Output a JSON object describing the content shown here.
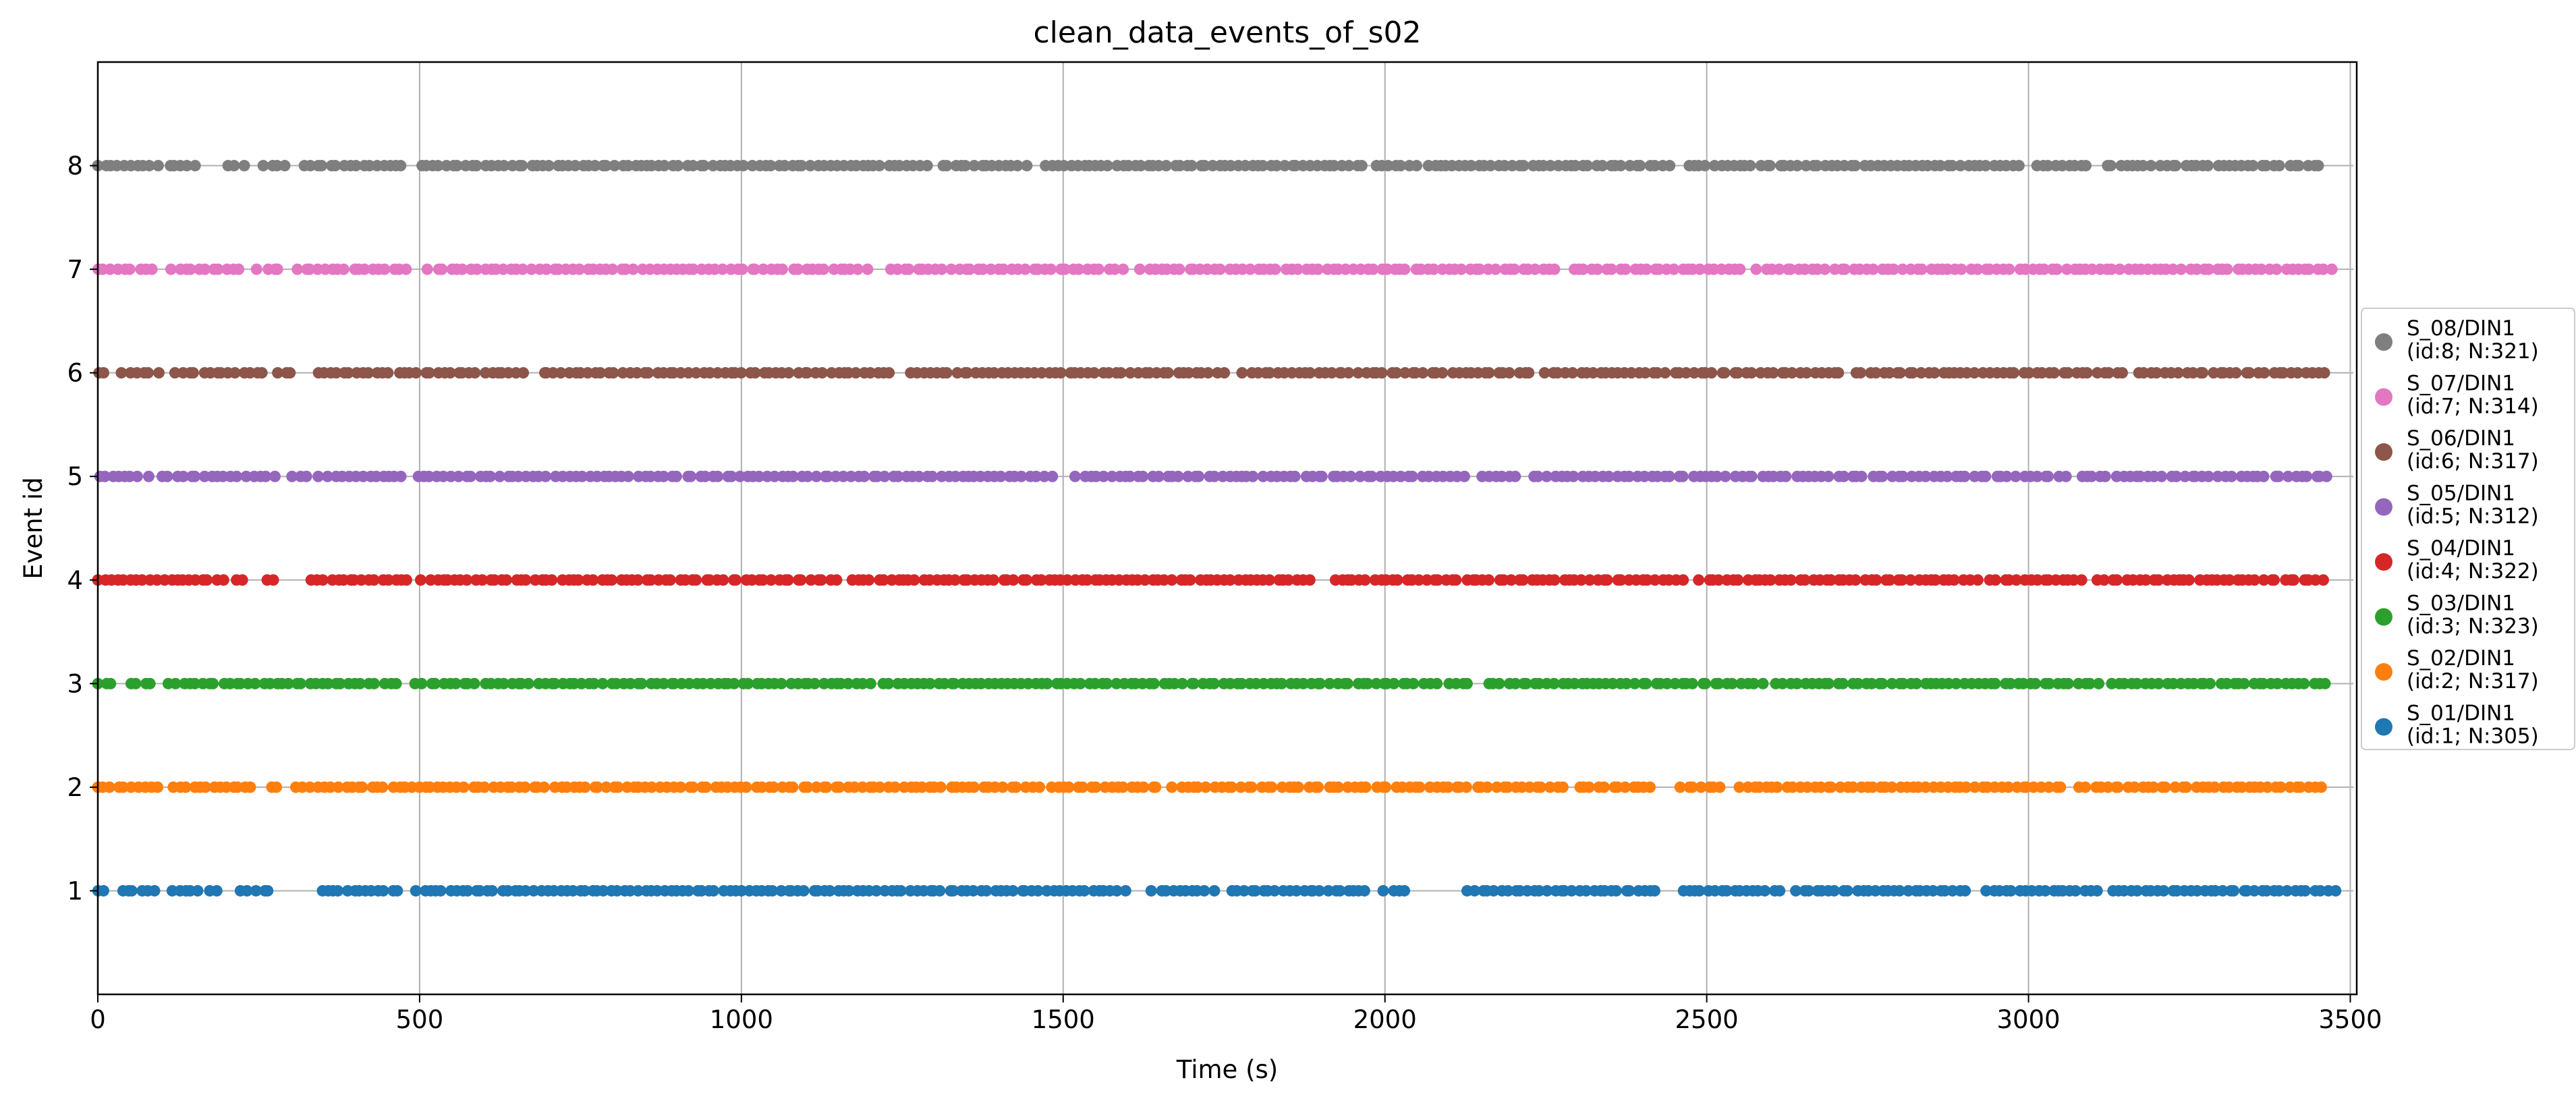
{
  "chart_data": {
    "type": "scatter",
    "title": "clean_data_events_of_s02",
    "xlabel": "Time (s)",
    "ylabel": "Event id",
    "xlim": [
      0,
      3510
    ],
    "ylim": [
      0,
      9
    ],
    "xticks": [
      0,
      500,
      1000,
      1500,
      2000,
      2500,
      3000,
      3500
    ],
    "yticks": [
      1,
      2,
      3,
      4,
      5,
      6,
      7,
      8
    ],
    "grid": "vertical lines at x ticks",
    "legend_position": "right-center, outside plot",
    "series": [
      {
        "id": 8,
        "name": "S_08/DIN1",
        "legend_line1": "S_08/DIN1",
        "legend_line2": "(id:8; N:321)",
        "count": 321,
        "color": "#7f7f7f",
        "gaps": [
          [
            95,
            110
          ],
          [
            155,
            205
          ],
          [
            230,
            260
          ],
          [
            300,
            320
          ],
          [
            480,
            500
          ],
          [
            1290,
            1310
          ],
          [
            1450,
            1470
          ],
          [
            1970,
            1985
          ],
          [
            2050,
            2065
          ],
          [
            2440,
            2470
          ],
          [
            2990,
            3010
          ],
          [
            3100,
            3120
          ]
        ]
      },
      {
        "id": 7,
        "name": "S_07/DIN1",
        "legend_line1": "S_07/DIN1",
        "legend_line2": "(id:7; N:314)",
        "count": 314,
        "color": "#e377c2",
        "gaps": [
          [
            90,
            115
          ],
          [
            230,
            250
          ],
          [
            290,
            310
          ],
          [
            485,
            515
          ],
          [
            1200,
            1230
          ],
          [
            1600,
            1620
          ],
          [
            2270,
            2290
          ],
          [
            2560,
            2580
          ]
        ]
      },
      {
        "id": 6,
        "name": "S_06/DIN1",
        "legend_line1": "S_06/DIN1",
        "legend_line2": "(id:6; N:317)",
        "count": 317,
        "color": "#8c564b",
        "gaps": [
          [
            20,
            40
          ],
          [
            100,
            120
          ],
          [
            260,
            280
          ],
          [
            310,
            340
          ],
          [
            670,
            690
          ],
          [
            1240,
            1260
          ],
          [
            1750,
            1780
          ],
          [
            2230,
            2250
          ],
          [
            2710,
            2730
          ],
          [
            3150,
            3170
          ]
        ]
      },
      {
        "id": 5,
        "name": "S_05/DIN1",
        "legend_line1": "S_05/DIN1",
        "legend_line2": "(id:5; N:312)",
        "count": 312,
        "color": "#9467bd",
        "gaps": [
          [
            75,
            100
          ],
          [
            275,
            300
          ],
          [
            330,
            345
          ],
          [
            475,
            495
          ],
          [
            1490,
            1520
          ],
          [
            2130,
            2150
          ],
          [
            2210,
            2230
          ],
          [
            3060,
            3080
          ]
        ]
      },
      {
        "id": 4,
        "name": "S_04/DIN1",
        "legend_line1": "S_04/DIN1",
        "legend_line2": "(id:4; N:322)",
        "count": 322,
        "color": "#d62728",
        "gaps": [
          [
            195,
            215
          ],
          [
            230,
            265
          ],
          [
            280,
            330
          ],
          [
            485,
            505
          ],
          [
            1150,
            1170
          ],
          [
            1890,
            1920
          ],
          [
            2470,
            2490
          ],
          [
            2920,
            2940
          ],
          [
            3090,
            3110
          ]
        ]
      },
      {
        "id": 3,
        "name": "S_03/DIN1",
        "legend_line1": "S_03/DIN1",
        "legend_line2": "(id:3; N:323)",
        "count": 323,
        "color": "#2ca02c",
        "gaps": [
          [
            30,
            50
          ],
          [
            90,
            110
          ],
          [
            225,
            235
          ],
          [
            470,
            495
          ],
          [
            1200,
            1220
          ],
          [
            2080,
            2100
          ],
          [
            2140,
            2160
          ],
          [
            2590,
            2610
          ],
          [
            3110,
            3130
          ]
        ]
      },
      {
        "id": 2,
        "name": "S_02/DIN1",
        "legend_line1": "S_02/DIN1",
        "legend_line2": "(id:2; N:317)",
        "count": 317,
        "color": "#ff7f0e",
        "gaps": [
          [
            95,
            115
          ],
          [
            250,
            270
          ],
          [
            285,
            310
          ],
          [
            1460,
            1480
          ],
          [
            1650,
            1670
          ],
          [
            2280,
            2300
          ],
          [
            2420,
            2460
          ],
          [
            2530,
            2550
          ],
          [
            3060,
            3080
          ]
        ]
      },
      {
        "id": 1,
        "name": "S_01/DIN1",
        "legend_line1": "S_01/DIN1",
        "legend_line2": "(id:1; N:305)",
        "count": 305,
        "color": "#1f77b4",
        "gaps": [
          [
            20,
            35
          ],
          [
            95,
            115
          ],
          [
            160,
            175
          ],
          [
            195,
            225
          ],
          [
            270,
            345
          ],
          [
            475,
            495
          ],
          [
            1600,
            1640
          ],
          [
            1740,
            1760
          ],
          [
            1980,
            2000
          ],
          [
            2040,
            2130
          ],
          [
            2430,
            2460
          ],
          [
            2620,
            2640
          ],
          [
            2910,
            2935
          ],
          [
            3110,
            3130
          ]
        ]
      }
    ]
  }
}
